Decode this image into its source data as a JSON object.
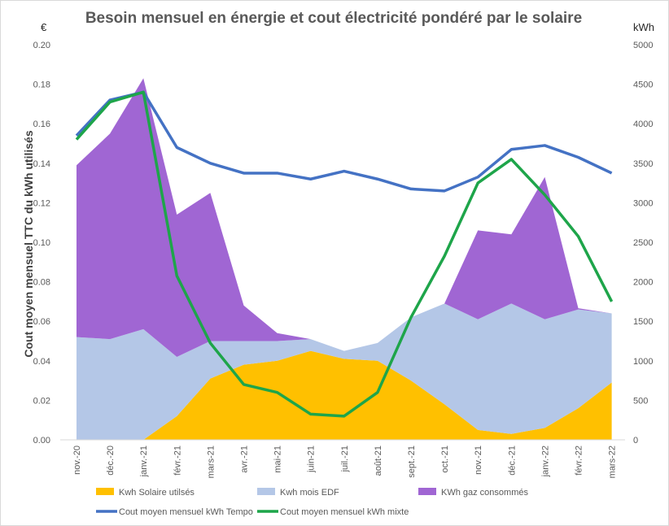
{
  "chart_data": {
    "type": "area",
    "title": "Besoin mensuel en énergie et cout électricité pondéré par le solaire",
    "ylabel": "Cout moyen mensuel TTC du kWh utilisés",
    "y_left_unit": "€",
    "y_right_unit": "kWh",
    "ylim_left": [
      0,
      0.2
    ],
    "ylim_right": [
      0,
      5000
    ],
    "left_ticks": [
      "0.00",
      "0.02",
      "0.04",
      "0.06",
      "0.08",
      "0.10",
      "0.12",
      "0.14",
      "0.16",
      "0.18",
      "0.20"
    ],
    "right_ticks": [
      "0",
      "500",
      "1000",
      "1500",
      "2000",
      "2500",
      "3000",
      "3500",
      "4000",
      "4500",
      "5000"
    ],
    "categories": [
      "nov.-20",
      "déc.-20",
      "janv.-21",
      "févr.-21",
      "mars-21",
      "avr.-21",
      "mai-21",
      "juin-21",
      "juil.-21",
      "août-21",
      "sept.-21",
      "oct.-21",
      "nov.-21",
      "déc.-21",
      "janv.-22",
      "févr.-22",
      "mars-22"
    ],
    "grid": false,
    "legend_placement": "bottom",
    "series": [
      {
        "name": "Kwh Solaire utilsés",
        "kind": "stacked-area",
        "axis": "right",
        "color": "#ffc000",
        "values": [
          0,
          0,
          0,
          300,
          775,
          950,
          1000,
          1125,
          1025,
          1000,
          750,
          450,
          125,
          75,
          150,
          400,
          725
        ]
      },
      {
        "name": "Kwh mois EDF",
        "kind": "stacked-area",
        "axis": "right",
        "color": "#b4c7e7",
        "values": [
          1300,
          1275,
          1400,
          750,
          475,
          300,
          250,
          150,
          100,
          225,
          800,
          1275,
          1400,
          1650,
          1375,
          1250,
          875
        ]
      },
      {
        "name": "KWh gaz consommés",
        "kind": "stacked-area",
        "axis": "right",
        "color": "#a066d3",
        "values": [
          2175,
          2600,
          3175,
          1800,
          1875,
          450,
          100,
          0,
          0,
          0,
          0,
          0,
          1125,
          875,
          1800,
          15,
          0
        ]
      },
      {
        "name": "Cout moyen mensuel kWh Tempo",
        "kind": "line",
        "axis": "left",
        "color": "#4472c4",
        "values": [
          0.154,
          0.172,
          0.176,
          0.148,
          0.14,
          0.135,
          0.135,
          0.132,
          0.136,
          0.132,
          0.127,
          0.126,
          0.133,
          0.147,
          0.149,
          0.143,
          0.135
        ]
      },
      {
        "name": "Cout moyen mensuel kWh mixte",
        "kind": "line",
        "axis": "left",
        "color": "#1ea54a",
        "values": [
          0.152,
          0.171,
          0.176,
          0.083,
          0.049,
          0.028,
          0.024,
          0.013,
          0.012,
          0.024,
          0.062,
          0.093,
          0.13,
          0.142,
          0.124,
          0.103,
          0.07
        ]
      }
    ]
  }
}
